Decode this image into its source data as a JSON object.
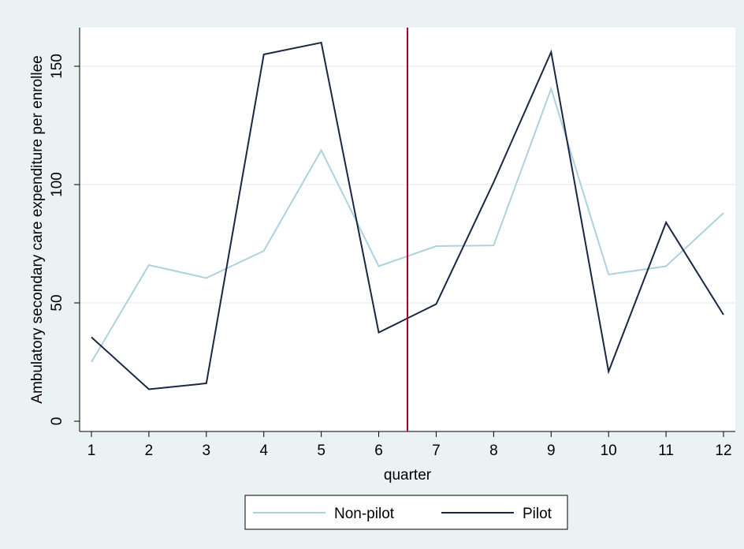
{
  "chart_data": {
    "type": "line",
    "xlabel": "quarter",
    "ylabel": "Ambulatory secondary care expenditure per enrollee",
    "x": [
      1,
      2,
      3,
      4,
      5,
      6,
      7,
      8,
      9,
      10,
      11,
      12
    ],
    "xticks": [
      "1",
      "2",
      "3",
      "4",
      "5",
      "6",
      "7",
      "8",
      "9",
      "10",
      "11",
      "12"
    ],
    "xlim": [
      1,
      12
    ],
    "yticks": [
      "0",
      "50",
      "100",
      "150"
    ],
    "ylim": [
      0,
      165
    ],
    "grid": "horizontal",
    "series": [
      {
        "name": "Non-pilot",
        "color": "#aed2dc",
        "values": [
          25,
          66,
          60.5,
          72,
          114.5,
          65.5,
          74,
          74.3,
          140.5,
          62,
          65.5,
          88
        ]
      },
      {
        "name": "Pilot",
        "color": "#1a2744",
        "values": [
          35.5,
          13.5,
          16,
          155,
          160,
          37.5,
          49.5,
          101,
          156,
          21,
          84,
          45
        ]
      }
    ],
    "reference_line": {
      "axis": "x",
      "value": 6.5,
      "color": "#b0002a"
    },
    "legend_position": "bottom",
    "colors": {
      "background": "#eaf2f3",
      "plot_area": "#ffffff",
      "gridline": "#eaf2f3",
      "axis": "#000000"
    }
  }
}
